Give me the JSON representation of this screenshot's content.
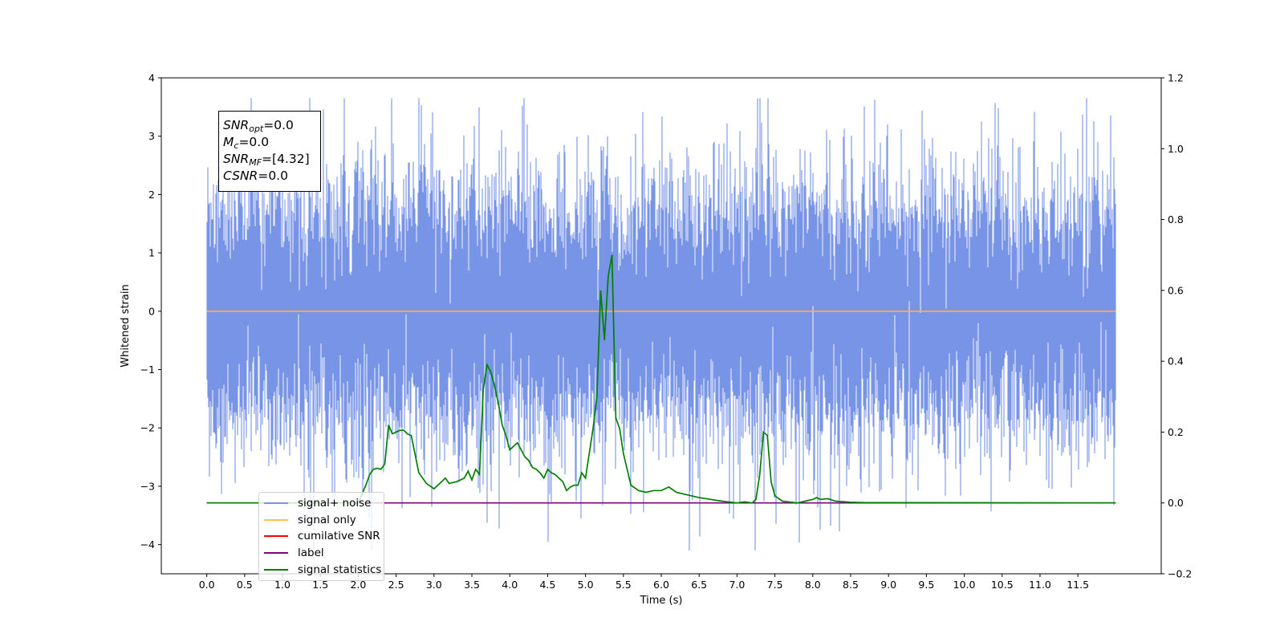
{
  "chart_data": {
    "type": "line",
    "xlabel": "Time (s)",
    "ylabel": "Whitened strain",
    "xlim": [
      -0.6,
      12.6
    ],
    "ylim": [
      -4.5,
      4.0
    ],
    "y2lim": [
      -0.2,
      1.2
    ],
    "x_ticks": [
      "0.0",
      "0.5",
      "1.0",
      "1.5",
      "2.0",
      "2.5",
      "3.0",
      "3.5",
      "4.0",
      "4.5",
      "5.0",
      "5.5",
      "6.0",
      "6.5",
      "7.0",
      "7.5",
      "8.0",
      "8.5",
      "9.0",
      "9.5",
      "10.0",
      "10.5",
      "11.0",
      "11.5"
    ],
    "y_ticks": [
      "4",
      "3",
      "2",
      "1",
      "0",
      "−1",
      "−2",
      "−3",
      "−4"
    ],
    "y2_ticks": [
      "1.2",
      "1.0",
      "0.8",
      "0.6",
      "0.4",
      "0.2",
      "0.0",
      "−0.2"
    ],
    "noise_band": {
      "t_start": 0.0,
      "t_end": 12.0,
      "typical_low": -1.7,
      "typical_high": 1.7,
      "max": 3.65,
      "min": -4.1
    },
    "series": [
      {
        "name": "signal+ noise",
        "color": "#7894e6",
        "axis": "left",
        "note_values": "dense white noise, approx ±1.7 with spikes to 3.65 / -4.1"
      },
      {
        "name": "signal only",
        "color": "#ffb347",
        "axis": "left",
        "x": [
          0.0,
          12.0
        ],
        "y": [
          0.0,
          0.0
        ]
      },
      {
        "name": "cumilative SNR",
        "color": "#ff0000",
        "axis": "right",
        "x": [],
        "y": []
      },
      {
        "name": "label",
        "color": "#800080",
        "axis": "right",
        "x": [
          0.0,
          12.0
        ],
        "y": [
          0.0,
          0.0
        ]
      },
      {
        "name": "signal statistics",
        "color": "#008000",
        "axis": "right",
        "x": [
          0.0,
          2.0,
          2.1,
          2.15,
          2.2,
          2.25,
          2.3,
          2.35,
          2.4,
          2.45,
          2.5,
          2.55,
          2.6,
          2.65,
          2.7,
          2.8,
          2.9,
          3.0,
          3.1,
          3.15,
          3.2,
          3.3,
          3.4,
          3.45,
          3.5,
          3.55,
          3.6,
          3.65,
          3.7,
          3.75,
          3.8,
          3.85,
          3.9,
          3.95,
          4.0,
          4.1,
          4.2,
          4.25,
          4.3,
          4.35,
          4.4,
          4.45,
          4.5,
          4.55,
          4.6,
          4.7,
          4.75,
          4.8,
          4.85,
          4.9,
          4.95,
          5.0,
          5.05,
          5.1,
          5.15,
          5.2,
          5.25,
          5.3,
          5.35,
          5.4,
          5.45,
          5.5,
          5.6,
          5.7,
          5.8,
          5.9,
          6.0,
          6.1,
          6.2,
          6.3,
          6.5,
          6.8,
          7.0,
          7.1,
          7.2,
          7.25,
          7.3,
          7.35,
          7.4,
          7.45,
          7.5,
          7.6,
          7.8,
          7.9,
          8.0,
          8.05,
          8.1,
          8.2,
          8.3,
          8.5,
          8.7,
          12.0
        ],
        "y": [
          0.0,
          0.0,
          0.05,
          0.08,
          0.095,
          0.098,
          0.095,
          0.11,
          0.22,
          0.195,
          0.2,
          0.205,
          0.205,
          0.195,
          0.19,
          0.085,
          0.055,
          0.04,
          0.06,
          0.07,
          0.055,
          0.06,
          0.07,
          0.09,
          0.065,
          0.095,
          0.08,
          0.32,
          0.39,
          0.37,
          0.33,
          0.28,
          0.22,
          0.19,
          0.15,
          0.17,
          0.13,
          0.12,
          0.1,
          0.095,
          0.085,
          0.07,
          0.095,
          0.085,
          0.08,
          0.06,
          0.035,
          0.045,
          0.05,
          0.05,
          0.085,
          0.07,
          0.14,
          0.21,
          0.3,
          0.6,
          0.46,
          0.64,
          0.7,
          0.24,
          0.21,
          0.14,
          0.05,
          0.035,
          0.03,
          0.035,
          0.035,
          0.045,
          0.03,
          0.025,
          0.015,
          0.005,
          0.0,
          0.003,
          0.0,
          0.01,
          0.08,
          0.2,
          0.19,
          0.06,
          0.02,
          0.005,
          0.0,
          0.005,
          0.01,
          0.015,
          0.01,
          0.012,
          0.005,
          0.002,
          0.001,
          0.0
        ]
      }
    ]
  },
  "stats": {
    "snr_opt_sym": "SNR",
    "snr_opt_sub": "opt",
    "snr_opt_val": "=0.0",
    "mc_sym": "M",
    "mc_sub": "c",
    "mc_val": "=0.0",
    "snr_mf_sym": "SNR",
    "snr_mf_sub": "MF",
    "snr_mf_val": "=[4.32]",
    "csnr_sym": "CSNR",
    "csnr_val": "=0.0"
  },
  "legend": {
    "items": [
      "signal+ noise",
      "signal only",
      "cumilative SNR",
      "label",
      "signal statistics"
    ],
    "colors": [
      "#7894e6",
      "#ffc04d",
      "#ff0000",
      "#800080",
      "#008000"
    ]
  }
}
